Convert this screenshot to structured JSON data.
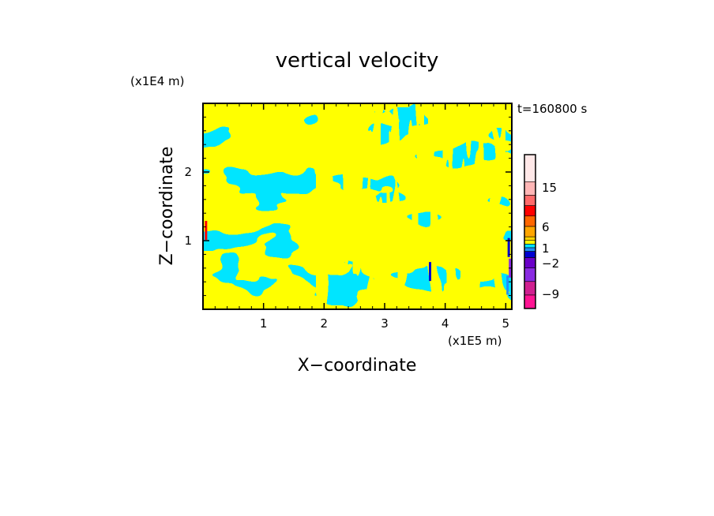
{
  "chart_data": {
    "type": "heatmap",
    "title": "vertical velocity",
    "xlabel": "X−coordinate",
    "ylabel": "Z−coordinate",
    "x_unit": "(x1E5 m)",
    "y_unit": "(x1E4 m)",
    "time_label": "t=160800 s",
    "xlim": [
      0,
      5.1
    ],
    "ylim": [
      0,
      3.0
    ],
    "x_ticks": [
      1,
      2,
      3,
      4,
      5
    ],
    "x_tick_labels": [
      "1",
      "2",
      "3",
      "4",
      "5"
    ],
    "y_ticks": [
      1,
      2
    ],
    "y_tick_labels": [
      "1",
      "2"
    ],
    "field_colors": {
      "positive": "#ffff00",
      "negative": "#00e5ff"
    },
    "colorbar": {
      "colors": [
        "#ff1493",
        "#d02090",
        "#8a2be2",
        "#6a00c8",
        "#0000d0",
        "#1e90ff",
        "#00e5ff",
        "#ffff00",
        "#ffd200",
        "#ffa500",
        "#ff6600",
        "#ff0000",
        "#ff6a6a",
        "#ffb6b6",
        "#ffe8e8"
      ],
      "labels": [
        "15",
        "6",
        "1",
        "−2",
        "−9"
      ]
    }
  }
}
